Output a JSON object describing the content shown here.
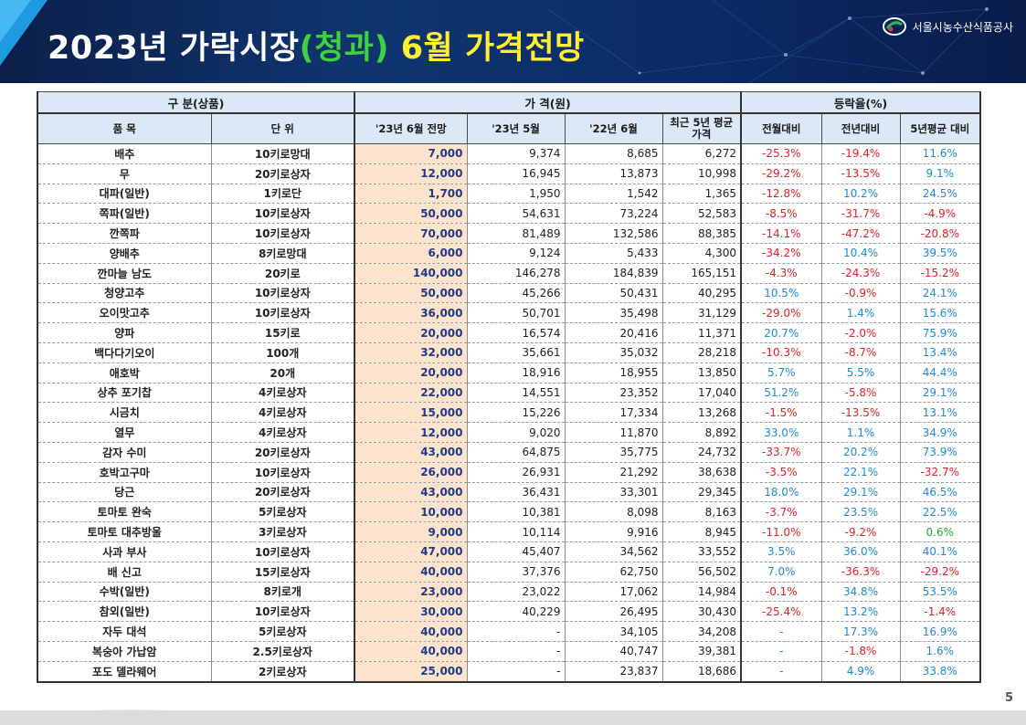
{
  "header": {
    "title_part1": "2023년 가락시장",
    "title_part2": "(청과)",
    "title_part3": " 6월 가격전망",
    "org_name": "서울시농수산식품공사"
  },
  "table": {
    "group_headers": [
      "구 분(상품)",
      "가 격(원)",
      "등락율(%)"
    ],
    "col_headers": [
      "품 목",
      "단 위",
      "'23년 6월 전망",
      "'23년 5월",
      "'22년 6월",
      "최근 5년 평균가격",
      "전월대비",
      "전년대비",
      "5년평균 대비"
    ],
    "rows": [
      {
        "name": "배추",
        "unit": "10키로망대",
        "forecast": "7,000",
        "may23": "9,374",
        "jun22": "8,685",
        "avg5": "6,272",
        "mom": "-25.3%",
        "yoy": "-19.4%",
        "vs5": "11.6%"
      },
      {
        "name": "무",
        "unit": "20키로상자",
        "forecast": "12,000",
        "may23": "16,945",
        "jun22": "13,873",
        "avg5": "10,998",
        "mom": "-29.2%",
        "yoy": "-13.5%",
        "vs5": "9.1%"
      },
      {
        "name": "대파(일반)",
        "unit": "1키로단",
        "forecast": "1,700",
        "may23": "1,950",
        "jun22": "1,542",
        "avg5": "1,365",
        "mom": "-12.8%",
        "yoy": "10.2%",
        "vs5": "24.5%"
      },
      {
        "name": "쪽파(일반)",
        "unit": "10키로상자",
        "forecast": "50,000",
        "may23": "54,631",
        "jun22": "73,224",
        "avg5": "52,583",
        "mom": "-8.5%",
        "yoy": "-31.7%",
        "vs5": "-4.9%"
      },
      {
        "name": "깐쪽파",
        "unit": "10키로상자",
        "forecast": "70,000",
        "may23": "81,489",
        "jun22": "132,586",
        "avg5": "88,385",
        "mom": "-14.1%",
        "yoy": "-47.2%",
        "vs5": "-20.8%"
      },
      {
        "name": "양배추",
        "unit": "8키로망대",
        "forecast": "6,000",
        "may23": "9,124",
        "jun22": "5,433",
        "avg5": "4,300",
        "mom": "-34.2%",
        "yoy": "10.4%",
        "vs5": "39.5%"
      },
      {
        "name": "깐마늘 남도",
        "unit": "20키로",
        "forecast": "140,000",
        "may23": "146,278",
        "jun22": "184,839",
        "avg5": "165,151",
        "mom": "-4.3%",
        "yoy": "-24.3%",
        "vs5": "-15.2%"
      },
      {
        "name": "청양고추",
        "unit": "10키로상자",
        "forecast": "50,000",
        "may23": "45,266",
        "jun22": "50,431",
        "avg5": "40,295",
        "mom": "10.5%",
        "yoy": "-0.9%",
        "vs5": "24.1%"
      },
      {
        "name": "오이맛고추",
        "unit": "10키로상자",
        "forecast": "36,000",
        "may23": "50,701",
        "jun22": "35,498",
        "avg5": "31,129",
        "mom": "-29.0%",
        "yoy": "1.4%",
        "vs5": "15.6%"
      },
      {
        "name": "양파",
        "unit": "15키로",
        "forecast": "20,000",
        "may23": "16,574",
        "jun22": "20,416",
        "avg5": "11,371",
        "mom": "20.7%",
        "yoy": "-2.0%",
        "vs5": "75.9%"
      },
      {
        "name": "백다다기오이",
        "unit": "100개",
        "forecast": "32,000",
        "may23": "35,661",
        "jun22": "35,032",
        "avg5": "28,218",
        "mom": "-10.3%",
        "yoy": "-8.7%",
        "vs5": "13.4%"
      },
      {
        "name": "애호박",
        "unit": "20개",
        "forecast": "20,000",
        "may23": "18,916",
        "jun22": "18,955",
        "avg5": "13,850",
        "mom": "5.7%",
        "yoy": "5.5%",
        "vs5": "44.4%"
      },
      {
        "name": "상추 포기찹",
        "unit": "4키로상자",
        "forecast": "22,000",
        "may23": "14,551",
        "jun22": "23,352",
        "avg5": "17,040",
        "mom": "51.2%",
        "yoy": "-5.8%",
        "vs5": "29.1%"
      },
      {
        "name": "시금치",
        "unit": "4키로상자",
        "forecast": "15,000",
        "may23": "15,226",
        "jun22": "17,334",
        "avg5": "13,268",
        "mom": "-1.5%",
        "yoy": "-13.5%",
        "vs5": "13.1%"
      },
      {
        "name": "열무",
        "unit": "4키로상자",
        "forecast": "12,000",
        "may23": "9,020",
        "jun22": "11,870",
        "avg5": "8,892",
        "mom": "33.0%",
        "yoy": "1.1%",
        "vs5": "34.9%"
      },
      {
        "name": "감자 수미",
        "unit": "20키로상자",
        "forecast": "43,000",
        "may23": "64,875",
        "jun22": "35,775",
        "avg5": "24,732",
        "mom": "-33.7%",
        "yoy": "20.2%",
        "vs5": "73.9%"
      },
      {
        "name": "호박고구마",
        "unit": "10키로상자",
        "forecast": "26,000",
        "may23": "26,931",
        "jun22": "21,292",
        "avg5": "38,638",
        "mom": "-3.5%",
        "yoy": "22.1%",
        "vs5": "-32.7%"
      },
      {
        "name": "당근",
        "unit": "20키로상자",
        "forecast": "43,000",
        "may23": "36,431",
        "jun22": "33,301",
        "avg5": "29,345",
        "mom": "18.0%",
        "yoy": "29.1%",
        "vs5": "46.5%"
      },
      {
        "name": "토마토 완숙",
        "unit": "5키로상자",
        "forecast": "10,000",
        "may23": "10,381",
        "jun22": "8,098",
        "avg5": "8,163",
        "mom": "-3.7%",
        "yoy": "23.5%",
        "vs5": "22.5%"
      },
      {
        "name": "토마토 대추방울",
        "unit": "3키로상자",
        "forecast": "9,000",
        "may23": "10,114",
        "jun22": "9,916",
        "avg5": "8,945",
        "mom": "-11.0%",
        "yoy": "-9.2%",
        "vs5": "0.6%"
      },
      {
        "name": "사과 부사",
        "unit": "10키로상자",
        "forecast": "47,000",
        "may23": "45,407",
        "jun22": "34,562",
        "avg5": "33,552",
        "mom": "3.5%",
        "yoy": "36.0%",
        "vs5": "40.1%"
      },
      {
        "name": "배 신고",
        "unit": "15키로상자",
        "forecast": "40,000",
        "may23": "37,376",
        "jun22": "62,750",
        "avg5": "56,502",
        "mom": "7.0%",
        "yoy": "-36.3%",
        "vs5": "-29.2%"
      },
      {
        "name": "수박(일반)",
        "unit": "8키로개",
        "forecast": "23,000",
        "may23": "23,022",
        "jun22": "17,062",
        "avg5": "14,984",
        "mom": "-0.1%",
        "yoy": "34.8%",
        "vs5": "53.5%"
      },
      {
        "name": "참외(일반)",
        "unit": "10키로상자",
        "forecast": "30,000",
        "may23": "40,229",
        "jun22": "26,495",
        "avg5": "30,430",
        "mom": "-25.4%",
        "yoy": "13.2%",
        "vs5": "-1.4%"
      },
      {
        "name": "자두 대석",
        "unit": "5키로상자",
        "forecast": "40,000",
        "may23": "-",
        "jun22": "34,105",
        "avg5": "34,208",
        "mom": "-",
        "yoy": "17.3%",
        "vs5": "16.9%"
      },
      {
        "name": "복숭아 가납암",
        "unit": "2.5키로상자",
        "forecast": "40,000",
        "may23": "-",
        "jun22": "40,747",
        "avg5": "39,381",
        "mom": "-",
        "yoy": "-1.8%",
        "vs5": "1.6%"
      },
      {
        "name": "포도 델라웨어",
        "unit": "2키로상자",
        "forecast": "25,000",
        "may23": "-",
        "jun22": "23,837",
        "avg5": "18,686",
        "mom": "-",
        "yoy": "4.9%",
        "vs5": "33.8%"
      }
    ]
  },
  "page_number": "5"
}
